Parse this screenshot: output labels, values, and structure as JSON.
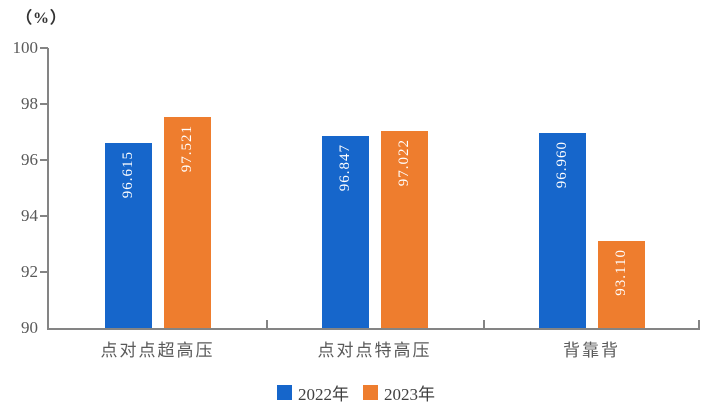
{
  "chart_data": {
    "type": "bar",
    "title": "",
    "ylabel": "（%）",
    "xlabel": "",
    "categories": [
      "点对点超高压",
      "点对点特高压",
      "背靠背"
    ],
    "series": [
      {
        "name": "2022年",
        "color": "#1666CB",
        "values": [
          96.615,
          96.847,
          96.96
        ]
      },
      {
        "name": "2023年",
        "color": "#EE7D2E",
        "values": [
          97.521,
          97.022,
          93.11
        ]
      }
    ],
    "value_label_decimals": 3,
    "ylim": [
      90,
      100
    ],
    "yticks": [
      90,
      92,
      94,
      96,
      98,
      100
    ],
    "grid": false,
    "legend_position": "bottom-center",
    "bar_value_labels": "inside-top-vertical-white"
  }
}
